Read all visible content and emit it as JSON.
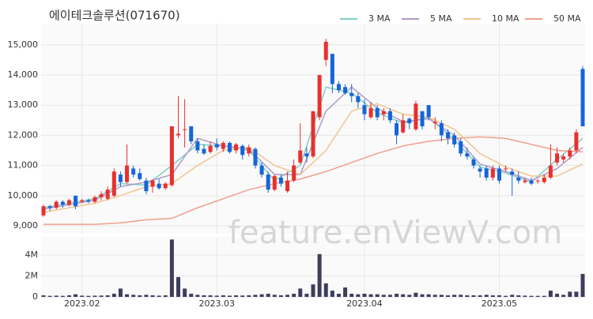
{
  "chart_data": {
    "type": "candlestick",
    "title": "에이테크솔루션(071670)",
    "watermark": "feature.enViewV.com",
    "up_color": "#e8302d",
    "down_color": "#1565d8",
    "grid": true,
    "categories": [
      null,
      null,
      null,
      null,
      null,
      null,
      "2023.02",
      null,
      null,
      null,
      null,
      null,
      null,
      null,
      null,
      null,
      null,
      null,
      null,
      null,
      null,
      null,
      null,
      null,
      null,
      null,
      null,
      "2023.03",
      null,
      null,
      null,
      null,
      null,
      null,
      null,
      null,
      null,
      null,
      null,
      null,
      null,
      null,
      null,
      null,
      null,
      null,
      null,
      null,
      null,
      null,
      "2023.04",
      null,
      null,
      null,
      null,
      null,
      null,
      null,
      null,
      null,
      null,
      null,
      null,
      null,
      null,
      null,
      null,
      null,
      null,
      null,
      null,
      "2023.05",
      null,
      null,
      null,
      null,
      null,
      null,
      null,
      null,
      null,
      null,
      null,
      null,
      null
    ],
    "ohlc": [
      [
        9350,
        9700,
        9300,
        9650
      ],
      [
        9650,
        9700,
        9500,
        9600
      ],
      [
        9600,
        9850,
        9550,
        9800
      ],
      [
        9800,
        9850,
        9600,
        9700
      ],
      [
        9700,
        9900,
        9650,
        9850
      ],
      [
        10000,
        10000,
        9550,
        9650
      ],
      [
        9800,
        9900,
        9750,
        9850
      ],
      [
        9850,
        9900,
        9750,
        9800
      ],
      [
        9800,
        10000,
        9750,
        9950
      ],
      [
        9950,
        10150,
        9850,
        10050
      ],
      [
        9900,
        10300,
        9850,
        10200
      ],
      [
        10000,
        10900,
        9950,
        10800
      ],
      [
        10700,
        10800,
        10300,
        10450
      ],
      [
        10450,
        11700,
        10400,
        11000
      ],
      [
        10900,
        11000,
        10600,
        10700
      ],
      [
        10750,
        10900,
        10500,
        10550
      ],
      [
        10500,
        10600,
        10050,
        10150
      ],
      [
        10300,
        10550,
        10100,
        10500
      ],
      [
        10400,
        10550,
        10200,
        10250
      ],
      [
        10250,
        10450,
        10200,
        10400
      ],
      [
        10350,
        12300,
        10300,
        12300
      ],
      [
        12000,
        13300,
        11900,
        12050
      ],
      [
        12200,
        13200,
        11600,
        12200
      ],
      [
        12300,
        12300,
        11700,
        11800
      ],
      [
        11800,
        11900,
        11400,
        11500
      ],
      [
        11550,
        11700,
        11350,
        11400
      ],
      [
        11450,
        11800,
        11400,
        11650
      ],
      [
        11700,
        11900,
        11500,
        11600
      ],
      [
        11550,
        11800,
        11450,
        11750
      ],
      [
        11750,
        11800,
        11400,
        11450
      ],
      [
        11500,
        11750,
        11400,
        11700
      ],
      [
        11650,
        11700,
        11200,
        11350
      ],
      [
        11400,
        11700,
        11300,
        11600
      ],
      [
        11550,
        11600,
        10900,
        11000
      ],
      [
        11000,
        11100,
        10600,
        10700
      ],
      [
        10700,
        10800,
        10100,
        10200
      ],
      [
        10200,
        10700,
        10150,
        10650
      ],
      [
        10600,
        10700,
        10300,
        10400
      ],
      [
        10150,
        10800,
        10100,
        10500
      ],
      [
        10500,
        11200,
        10450,
        11000
      ],
      [
        11100,
        12400,
        11050,
        11500
      ],
      [
        11400,
        11600,
        11100,
        11300
      ],
      [
        11300,
        12800,
        11250,
        12800
      ],
      [
        12600,
        14000,
        12500,
        14000
      ],
      [
        14500,
        15200,
        14300,
        15100
      ],
      [
        14700,
        14700,
        13400,
        13700
      ],
      [
        13700,
        13800,
        13400,
        13500
      ],
      [
        13600,
        13700,
        13350,
        13400
      ],
      [
        13400,
        13700,
        13100,
        13300
      ],
      [
        13300,
        13400,
        12900,
        13100
      ],
      [
        13000,
        13200,
        12500,
        12700
      ],
      [
        12600,
        13100,
        12550,
        12900
      ],
      [
        12900,
        13000,
        12500,
        12600
      ],
      [
        12700,
        12900,
        12500,
        12800
      ],
      [
        12800,
        12900,
        12400,
        12500
      ],
      [
        12400,
        12500,
        11700,
        12000
      ],
      [
        12100,
        12700,
        12050,
        12500
      ],
      [
        12550,
        12600,
        12200,
        12400
      ],
      [
        12200,
        13150,
        12150,
        13050
      ],
      [
        12800,
        12800,
        12200,
        12300
      ],
      [
        13000,
        13000,
        12500,
        12600
      ],
      [
        12400,
        12600,
        12200,
        12450
      ],
      [
        12400,
        12500,
        11800,
        12000
      ],
      [
        12100,
        12200,
        11700,
        11900
      ],
      [
        12000,
        12100,
        11600,
        11700
      ],
      [
        11800,
        11900,
        11300,
        11400
      ],
      [
        11400,
        11600,
        11200,
        11300
      ],
      [
        11200,
        11300,
        10900,
        11000
      ],
      [
        10900,
        11000,
        10600,
        10800
      ],
      [
        10900,
        11000,
        10500,
        10600
      ],
      [
        10600,
        11000,
        10500,
        10900
      ],
      [
        10900,
        11000,
        10400,
        10500
      ],
      [
        10900,
        11000,
        10800,
        10900
      ],
      [
        10800,
        10900,
        10000,
        10700
      ],
      [
        10600,
        10800,
        10400,
        10500
      ],
      [
        10450,
        10600,
        10400,
        10500
      ],
      [
        10500,
        10600,
        10350,
        10400
      ],
      [
        10500,
        10550,
        10400,
        10500
      ],
      [
        10450,
        10700,
        10400,
        10600
      ],
      [
        10600,
        11700,
        10550,
        11000
      ],
      [
        11100,
        11600,
        11000,
        11400
      ],
      [
        11200,
        11400,
        11100,
        11300
      ],
      [
        11300,
        11600,
        11200,
        11500
      ],
      [
        11500,
        12200,
        11400,
        12100
      ],
      [
        14200,
        14300,
        12300,
        12300
      ]
    ],
    "ylim": [
      8740,
      15700
    ],
    "yticks": [
      {
        "value": 9000,
        "label": "9,000"
      },
      {
        "value": 10000,
        "label": "10,000"
      },
      {
        "value": 11000,
        "label": "11,000"
      },
      {
        "value": 12000,
        "label": "12,000"
      },
      {
        "value": 13000,
        "label": "13,000"
      },
      {
        "value": 14000,
        "label": "14,000"
      },
      {
        "value": 15000,
        "label": "15,000"
      }
    ],
    "series": [
      {
        "name": "3 MA",
        "color": "#7fd0c7",
        "x": [
          0,
          4,
          8,
          12,
          16,
          20,
          24,
          28,
          32,
          36,
          40,
          44,
          48,
          52,
          56,
          60,
          64,
          68,
          72,
          76,
          80,
          84
        ],
        "values": [
          9600,
          9750,
          9900,
          10400,
          10350,
          11000,
          11700,
          11650,
          11500,
          10500,
          11000,
          13600,
          13400,
          12750,
          12400,
          12600,
          11850,
          10950,
          10750,
          10450,
          11200,
          11900
        ]
      },
      {
        "name": "5 MA",
        "color": "#b09ac7",
        "x": [
          0,
          4,
          8,
          12,
          16,
          20,
          24,
          28,
          32,
          36,
          40,
          44,
          48,
          52,
          56,
          60,
          64,
          68,
          72,
          76,
          80,
          84
        ],
        "values": [
          9550,
          9700,
          9850,
          10300,
          10450,
          10700,
          11900,
          11650,
          11550,
          10700,
          10700,
          12800,
          13600,
          12900,
          12450,
          12550,
          12000,
          11050,
          10800,
          10500,
          10900,
          11600
        ]
      },
      {
        "name": "10 MA",
        "color": "#f3c48e",
        "x": [
          0,
          4,
          8,
          12,
          16,
          20,
          24,
          28,
          32,
          36,
          40,
          44,
          48,
          52,
          56,
          60,
          64,
          68,
          72,
          76,
          80,
          84
        ],
        "values": [
          9450,
          9600,
          9750,
          10000,
          10300,
          10400,
          11000,
          11500,
          11600,
          11000,
          10700,
          11500,
          12800,
          13050,
          12700,
          12600,
          12200,
          11400,
          10950,
          10650,
          10650,
          11050
        ]
      },
      {
        "name": "50 MA",
        "color": "#f0a08a",
        "x": [
          0,
          4,
          8,
          12,
          16,
          20,
          24,
          28,
          32,
          36,
          40,
          44,
          48,
          52,
          56,
          60,
          64,
          68,
          72,
          76,
          80,
          84
        ],
        "values": [
          9050,
          9050,
          9050,
          9100,
          9200,
          9250,
          9600,
          9900,
          10200,
          10400,
          10550,
          10800,
          11100,
          11400,
          11650,
          11800,
          11900,
          11950,
          11900,
          11700,
          11500,
          11450
        ]
      }
    ],
    "volume": {
      "color": "#3d3d5c",
      "ylim": [
        0,
        5600000
      ],
      "yticks": [
        0,
        {
          "value": 2000000,
          "label": "2M"
        },
        {
          "value": 4000000,
          "label": "4M"
        }
      ],
      "values": [
        150000,
        100000,
        120000,
        100000,
        150000,
        250000,
        120000,
        100000,
        120000,
        130000,
        150000,
        300000,
        800000,
        250000,
        200000,
        150000,
        200000,
        150000,
        120000,
        150000,
        5500000,
        1900000,
        800000,
        300000,
        200000,
        150000,
        150000,
        120000,
        150000,
        120000,
        150000,
        130000,
        150000,
        200000,
        250000,
        300000,
        200000,
        150000,
        200000,
        300000,
        800000,
        300000,
        1200000,
        4100000,
        1300000,
        600000,
        300000,
        900000,
        300000,
        250000,
        300000,
        250000,
        250000,
        200000,
        200000,
        300000,
        250000,
        200000,
        400000,
        250000,
        250000,
        200000,
        200000,
        150000,
        200000,
        200000,
        150000,
        150000,
        150000,
        200000,
        150000,
        150000,
        100000,
        200000,
        150000,
        120000,
        100000,
        100000,
        100000,
        600000,
        300000,
        200000,
        500000,
        500000,
        2200000
      ]
    }
  }
}
